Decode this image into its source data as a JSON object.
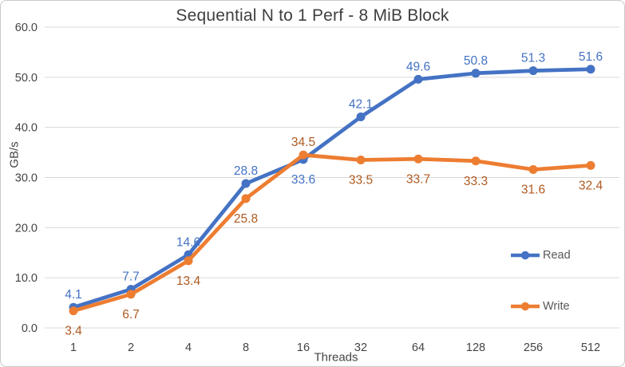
{
  "chart_data": {
    "type": "line",
    "title": "Sequential N to 1 Perf - 8 MiB Block",
    "xlabel": "Threads",
    "ylabel": "GB/s",
    "categories": [
      "1",
      "2",
      "4",
      "8",
      "16",
      "32",
      "64",
      "128",
      "256",
      "512"
    ],
    "series": [
      {
        "name": "Read",
        "color": "#4472C4",
        "label_color": "#4472C4",
        "values": [
          4.1,
          7.7,
          14.6,
          28.8,
          33.6,
          42.1,
          49.6,
          50.8,
          51.3,
          51.6
        ],
        "label_positions": [
          "above",
          "above",
          "above",
          "above",
          "below",
          "above",
          "above",
          "above",
          "above",
          "above"
        ]
      },
      {
        "name": "Write",
        "color": "#ED7D31",
        "label_color": "#AE5A21",
        "values": [
          3.4,
          6.7,
          13.4,
          25.8,
          34.5,
          33.5,
          33.7,
          33.3,
          31.6,
          32.4
        ],
        "label_positions": [
          "below",
          "below",
          "below",
          "below",
          "above",
          "below",
          "below",
          "below",
          "below",
          "below"
        ]
      }
    ],
    "y_axis": {
      "min": 0,
      "max": 60,
      "step": 10,
      "ticks": [
        "0.0",
        "10.0",
        "20.0",
        "30.0",
        "40.0",
        "50.0",
        "60.0"
      ]
    },
    "grid": true,
    "legend_position": "right-inside",
    "colors": {
      "gridline": "#D9D9D9",
      "axis_text": "#444444",
      "title_text": "#3F3F3F",
      "frame_border": "#C9C9C9",
      "background": "#FFFFFF"
    }
  }
}
